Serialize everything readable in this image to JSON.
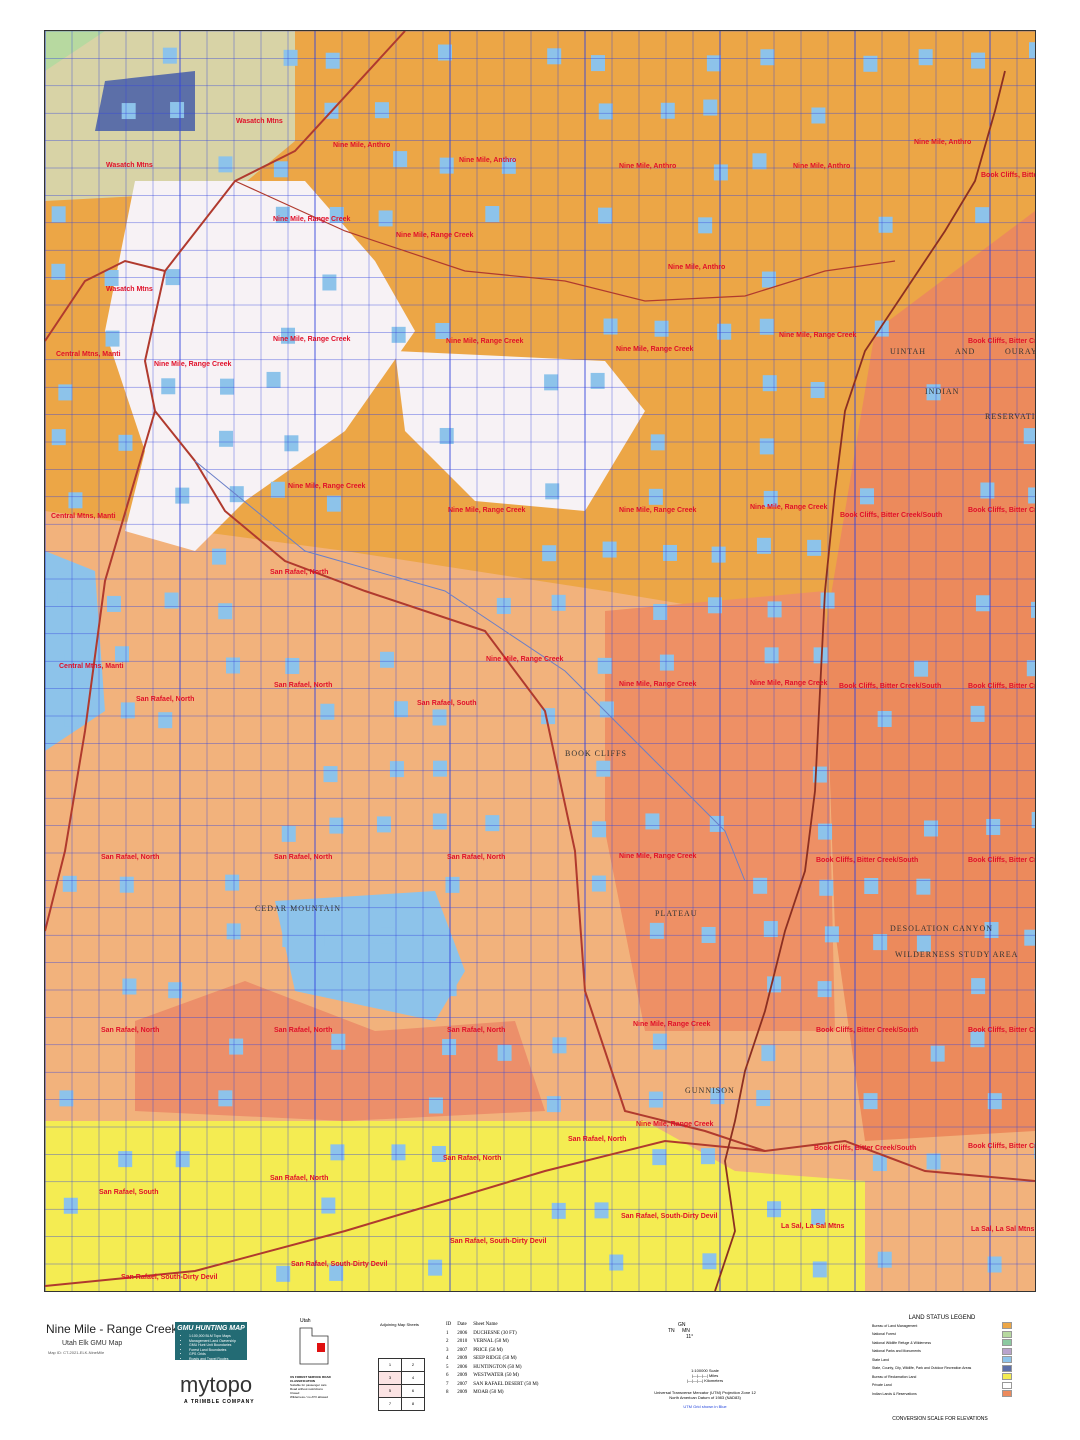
{
  "header": {
    "title": "Nine Mile - Range Creek",
    "subtitle": "Utah Elk GMU Map",
    "footnote": "Map ID: CT-2021-ELK-NineMile"
  },
  "promo": {
    "title": "GMU HUNTING MAP",
    "bullets": [
      "1:100,000 BLM Topo Maps",
      "Management Land Ownership",
      "GMU Hunt Unit Boundaries",
      "Forest Land Boundaries",
      "GPS Grids",
      "Roads and Travel Routes"
    ]
  },
  "brand": {
    "logo": "mytopo",
    "company": "A TRIMBLE COMPANY"
  },
  "state_inset": {
    "label": "Utah"
  },
  "road_legend": {
    "title": "US FOREST SERVICE ROAD CLASSIFICATION",
    "items": [
      "Suitable for passenger cars",
      "Road without restrictions",
      "Closed",
      "Wilderness / no ATV allowed"
    ]
  },
  "adjoining": {
    "title": "Adjoining Map Sheets",
    "cells": [
      "1",
      "2",
      "3",
      "4",
      "5",
      "6",
      "7",
      "8"
    ]
  },
  "quads": {
    "headers": [
      "ID",
      "Date",
      "Sheet Name"
    ],
    "rows": [
      [
        "1",
        "2006",
        "DUCHESNE (30 FT)"
      ],
      [
        "2",
        "2010",
        "VERNAL (50 M)"
      ],
      [
        "3",
        "2007",
        "PRICE (50 M)"
      ],
      [
        "4",
        "2009",
        "SEEP RIDGE (50 M)"
      ],
      [
        "5",
        "2006",
        "HUNTINGTON (50 M)"
      ],
      [
        "6",
        "2009",
        "WESTWATER (50 M)"
      ],
      [
        "7",
        "2007",
        "SAN RAFAEL DESERT (50 M)"
      ],
      [
        "8",
        "2009",
        "MOAB (50 M)"
      ]
    ]
  },
  "north_arrow": {
    "gn": "GN",
    "tn": "TN",
    "mn": "MN",
    "declination": "11°"
  },
  "scale": {
    "text": "1:100000 Scale",
    "miles": "Miles",
    "km": "Kilometers"
  },
  "projection": {
    "line1": "Universal Transverse Mercator (UTM) Projection Zone 12",
    "line2": "North American Datum of 1983 (NAD83)",
    "grid_note": "UTM Grid shown in Blue"
  },
  "land_legend": {
    "title": "LAND STATUS LEGEND",
    "items": [
      {
        "label": "Bureau of Land Management",
        "color": "#eca646"
      },
      {
        "label": "National Forest",
        "color": "#b7d9a0"
      },
      {
        "label": "National Wildlife Refuge & Wilderness",
        "color": "#8cc9a0"
      },
      {
        "label": "National Parks and Monuments",
        "color": "#b9a3cc"
      },
      {
        "label": "State Land",
        "color": "#8dc3ea"
      },
      {
        "label": "State, County, City, Wildlife, Park and Outdoor Recreation Areas",
        "color": "#5c6fa8"
      },
      {
        "label": "Bureau of Reclamation Land",
        "color": "#f4ec52"
      },
      {
        "label": "Private Land",
        "color": "#ffffff"
      },
      {
        "label": "Indian Lands & Reservations",
        "color": "#ec8a5c"
      }
    ]
  },
  "conversion": {
    "title": "CONVERSION SCALE FOR ELEVATIONS"
  },
  "map": {
    "gmu_labels": [
      "Wasatch Mtns",
      "Wasatch Mtns",
      "Wasatch Mtns",
      "Nine Mile, Anthro",
      "Nine Mile, Anthro",
      "Nine Mile, Anthro",
      "Nine Mile, Anthro",
      "Nine Mile, Anthro",
      "Nine Mile, Anthro",
      "Book Cliffs, Bitter Creek",
      "Nine Mile, Range Creek",
      "Nine Mile, Range Creek",
      "Nine Mile, Range Creek",
      "Nine Mile, Range Creek",
      "Nine Mile, Range Creek",
      "Nine Mile, Range Creek",
      "Nine Mile, Range Creek",
      "Nine Mile, Range Creek",
      "Nine Mile, Range Creek",
      "Nine Mile, Range Creek",
      "Nine Mile, Range Creek",
      "Nine Mile, Range Creek",
      "Nine Mile, Range Creek",
      "Nine Mile, Range Creek",
      "Nine Mile, Range Creek",
      "Nine Mile, Range Creek",
      "Nine Mile, Range Creek",
      "Central Mtns, Manti",
      "Central Mtns, Manti",
      "Central Mtns, Manti",
      "Book Cliffs, Bitter Creek/South",
      "Book Cliffs, Bitter Creek/South",
      "Book Cliffs, Bitter Creek/South",
      "Book Cliffs, Bitter Creek/South",
      "Book Cliffs, Bitter Creek/South",
      "Book Cliffs, Bitter Creek/South",
      "Book Cliffs, Bitter Creek/South",
      "Book Cliffs, Bitter Creek/South",
      "Book Cliffs, Bitter Creek/South",
      "Book Cliffs, Bitter Creek/South",
      "Book Cliffs, Bitter Creek/South",
      "San Rafael, North",
      "San Rafael, North",
      "San Rafael, North",
      "San Rafael, South",
      "San Rafael, North",
      "San Rafael, North",
      "San Rafael, North",
      "San Rafael, North",
      "San Rafael, North",
      "San Rafael, North",
      "San Rafael, North",
      "San Rafael, North",
      "San Rafael, North",
      "San Rafael, South",
      "San Rafael, South-Dirty Devil",
      "San Rafael, South-Dirty Devil",
      "San Rafael, South-Dirty Devil",
      "San Rafael, South-Dirty Devil",
      "La Sal, La Sal Mtns",
      "La Sal, La Sal Mtns"
    ],
    "places": [
      "UINTAH",
      "AND",
      "OURAY",
      "INDIAN",
      "RESERVATION",
      "DESOLATION CANYON",
      "WILDERNESS STUDY AREA",
      "GUNNISON",
      "PLATEAU",
      "BOOK CLIFFS",
      "CEDAR MOUNTAIN"
    ]
  }
}
